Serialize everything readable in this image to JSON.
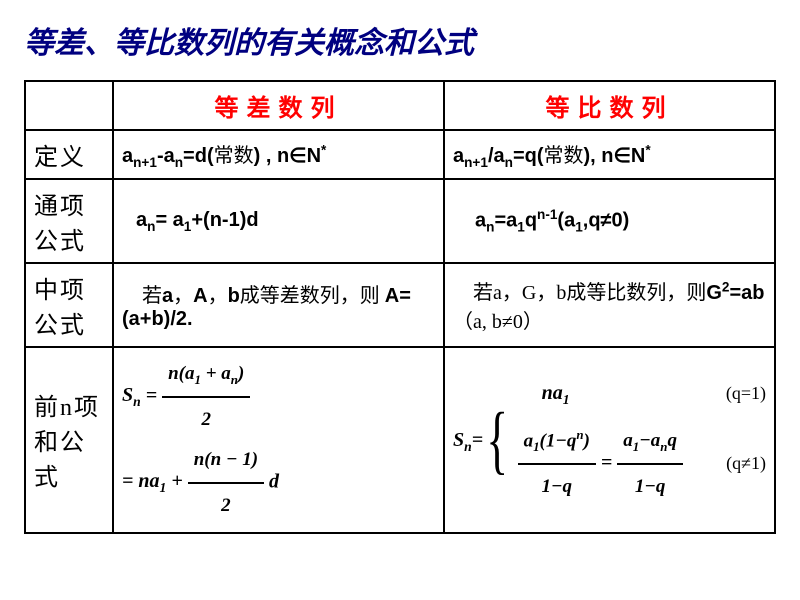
{
  "title": "等差、等比数列的有关概念和公式",
  "colors": {
    "title": "#000080",
    "header_text": "#ff0000",
    "border": "#000000",
    "bg": "#ffffff"
  },
  "fonts": {
    "title_size": 30,
    "header_size": 24,
    "cell_size": 20
  },
  "columns": {
    "arith": "等差数列",
    "geom": "等比数列"
  },
  "rows": {
    "def": {
      "label": "定义",
      "arith_html": "a<sub>n+1</sub>-a<sub>n</sub>=d(<span class='cn'>常数</span>) , n∈N<sup>*</sup>",
      "geom_html": "a<sub>n+1</sub>/a<sub>n</sub>=q(<span class='cn'>常数</span>), n∈N<sup>*</sup>"
    },
    "term": {
      "label": "通项公式",
      "arith_html": "a<sub>n</sub>= a<sub>1</sub>+(n-1)d",
      "geom_html": "a<sub>n</sub>=a<sub>1</sub>q<sup>n-1</sup>(a<sub>1</sub>,q≠0)"
    },
    "mid": {
      "label": "中项公式",
      "arith_html": "　<span class='cn'>若</span>a<span class='cn'>，</span>A<span class='cn'>，</span>b<span class='cn'>成等差数列，则 </span>A=(a+b)/2.",
      "geom_html": "　<span class='cn'>若a，G，b成等比数列，则</span>G<sup>2</sup>=ab<span class='cn'>（a, b≠0）</span>"
    },
    "sum": {
      "label": "前n项和公式"
    }
  },
  "sum_arith": {
    "lhs": "S<sub>n</sub>",
    "frac1_num": "n(a<sub>1</sub> + a<sub>n</sub>)",
    "frac1_den": "2",
    "prefix2": "= na<sub>1</sub> +",
    "frac2_num": "n(n − 1)",
    "frac2_den": "2",
    "suffix2": "d"
  },
  "sum_geom": {
    "lhs": "S<sub>n</sub>=",
    "case1": "na<sub>1</sub>",
    "cond1": "(q=1)",
    "case2a_num": "a<sub>1</sub>(1−q<sup>n</sup>)",
    "case2a_den": "1−q",
    "case2b_num": "a<sub>1</sub>−a<sub>n</sub>q",
    "case2b_den": "1−q",
    "cond2": "(q≠1)"
  }
}
